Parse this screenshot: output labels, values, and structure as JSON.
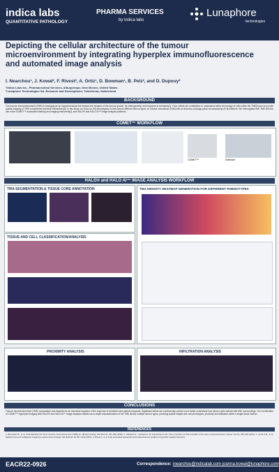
{
  "header": {
    "logo_left": "indica labs",
    "logo_left_sub": "QUANTITATIVE PATHOLOGY",
    "logo_mid": "PHARMA SERVICES",
    "logo_mid_sub": "by indica labs",
    "logo_right": "Lunaphore",
    "logo_right_sub": "technologies"
  },
  "title": "Depicting the cellular architecture of the tumour microenvironment by integrating hyperplex immunofluorescence and automated image analysis",
  "authors": "I. Nearchou¹, J. Kowal², F. Rivest², A. Ortiz¹, D. Bowman¹, B. Pelz², and D. Dupouy²",
  "affiliations": [
    "¹Indica Labs Inc., Pharmaceutical Services, Albuquerque, New Mexico, United States.",
    "²Lunaphore Technologies SA, Research and Development, Tolochenaz, Switzerland"
  ],
  "background": {
    "heading": "BACKGROUND",
    "text": "The tumour microenvironment (TME) is emerging as an important factor that shapes the dynamic of the tumour growth, its heterogeneity, and response to therapies[1]. Thus, efforts are undertaken to understand better the biology of cells within the TME[2] and to provide spatial mapping of TME components and their interactions[3]. In this study, we focus on the phenotyping of cells across different tumour types on a tissue microarray (TMA) with an immuno-oncology panel encompassing 20 biomarkers. We interrogated their TME with the use of the COMET™ automated staining and imaging instrument[4], and HALO® and HALO AI™ image analysis platforms."
  },
  "comet": {
    "heading": "COMET™ WORKFLOW",
    "labels": [
      "COMET™",
      "Software"
    ]
  },
  "halo": {
    "heading": "HALO® and HALO AI™ IMAGE ANALYSIS WORKFLOW",
    "panels": [
      "TMA SEGMENTATION & TISSUE CORE ANNOTATION",
      "TMA DENSITY HEATMAP GENERATION FOR DIFFERENT PHENOTYPES",
      "TISSUE AND CELL CLASSIFICATION/ANALYSIS"
    ]
  },
  "analysis": {
    "panels": [
      "PROXIMITY ANALYSIS",
      "INFILTRATION ANALYSIS"
    ]
  },
  "conclusions": {
    "heading": "CONCLUSIONS",
    "text": "Tumour microenvironment (TME) composition was depicted as an important regulator of the response to treatment and patient prognosis. Significant efforts are continuously carried out to better understand how tumour cells interact with their surroundings. The combination of COMET™ hyperplex imaging with HALO® and HALO AI™ image analysis enabled an in-depth characterization of the TME across multiple tumour types, providing spatial insights into cell phenotypes, proximity and infiltration within a single tissue section."
  },
  "references": {
    "heading": "REFERENCES",
    "text": "1. Binnewies M., et al. Understanding the tumor immune microenvironment (TIME) for effective therapy. Nat Med 24, 541–550 (2018). 2. Hanahan D., Coussens L.M. Accessories to the crime: functions of cells recruited to the tumor microenvironment. Cancer Cell 21, 309–322 (2012). 3. Lewis S.M., et al. Spatial omics and multiplexed imaging to explore cancer biology. Nat Methods 18, 997–1012 (2021). 4. Rivest F., et al. Fully automated sequential immunofluorescence (seqIF) for hyperplex spatial proteomics."
  },
  "footer": {
    "code": "EACR22-0926",
    "correspondence": "Correspondence:",
    "emails": "inearchou@indicalab.com  joanna.kowal@lunaphore.com"
  }
}
